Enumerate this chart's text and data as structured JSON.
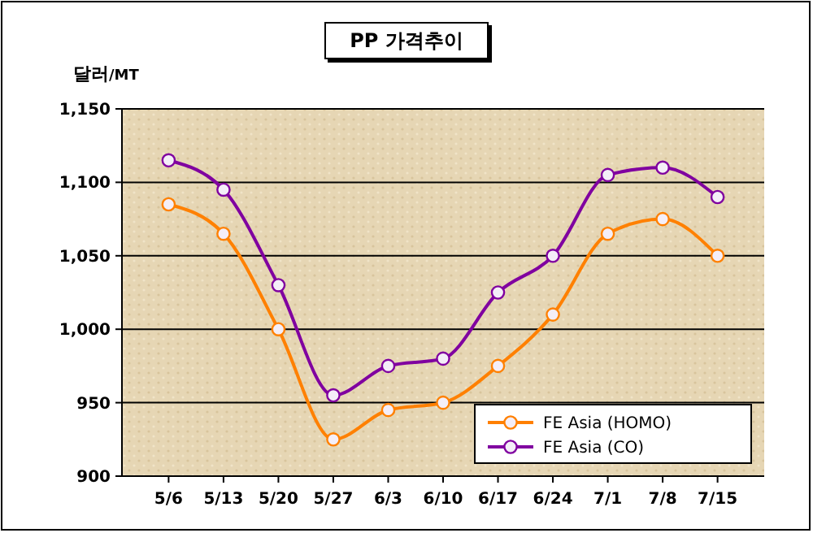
{
  "chart_data": {
    "type": "line",
    "title": "PP 가격추이",
    "ylabel": "달러/MT",
    "categories": [
      "5/6",
      "5/13",
      "5/20",
      "5/27",
      "6/3",
      "6/10",
      "6/17",
      "6/24",
      "7/1",
      "7/8",
      "7/15"
    ],
    "series": [
      {
        "name": "FE Asia (HOMO)",
        "color": "#ff8000",
        "values": [
          1085,
          1065,
          1000,
          925,
          945,
          950,
          975,
          1010,
          1065,
          1075,
          1050
        ]
      },
      {
        "name": "FE Asia (CO)",
        "color": "#8000a0",
        "values": [
          1115,
          1095,
          1030,
          955,
          975,
          980,
          1025,
          1050,
          1105,
          1110,
          1090
        ]
      }
    ],
    "ylim": [
      900,
      1150
    ],
    "yticks": [
      {
        "value": 900,
        "label": "900"
      },
      {
        "value": 950,
        "label": "950"
      },
      {
        "value": 1000,
        "label": "1,000"
      },
      {
        "value": 1050,
        "label": "1,050"
      },
      {
        "value": 1100,
        "label": "1,100"
      },
      {
        "value": 1150,
        "label": "1,150"
      }
    ],
    "grid": "y",
    "legend": "bottom right",
    "marker": "circle",
    "line_style": "solid"
  }
}
